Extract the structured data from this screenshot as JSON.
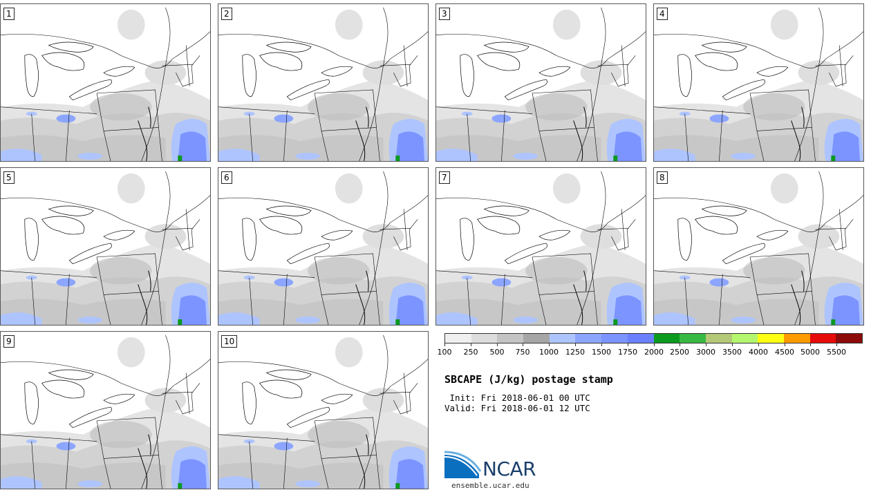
{
  "panels": [
    "1",
    "2",
    "3",
    "4",
    "5",
    "6",
    "7",
    "8",
    "9",
    "10"
  ],
  "colorbar": {
    "colors": [
      "#f0f0f0",
      "#dcdcdc",
      "#c4c4c4",
      "#a6a6a6",
      "#aec4ff",
      "#8ca6ff",
      "#7c94ff",
      "#6a80ff",
      "#0a9a1e",
      "#38b844",
      "#b4c878",
      "#b4f76e",
      "#ffff14",
      "#ff9a00",
      "#e60a0a",
      "#8c0a0a"
    ],
    "labels": [
      "100",
      "250",
      "500",
      "750",
      "1000",
      "1250",
      "1500",
      "1750",
      "2000",
      "2500",
      "3000",
      "3500",
      "4000",
      "4500",
      "5000",
      "5500"
    ]
  },
  "title": "SBCAPE (J/kg) postage stamp",
  "init_text": " Init: Fri 2018-06-01 00 UTC",
  "valid_text": "Valid: Fri 2018-06-01 12 UTC",
  "logo_text": "NCAR",
  "website": "ensemble.ucar.edu"
}
